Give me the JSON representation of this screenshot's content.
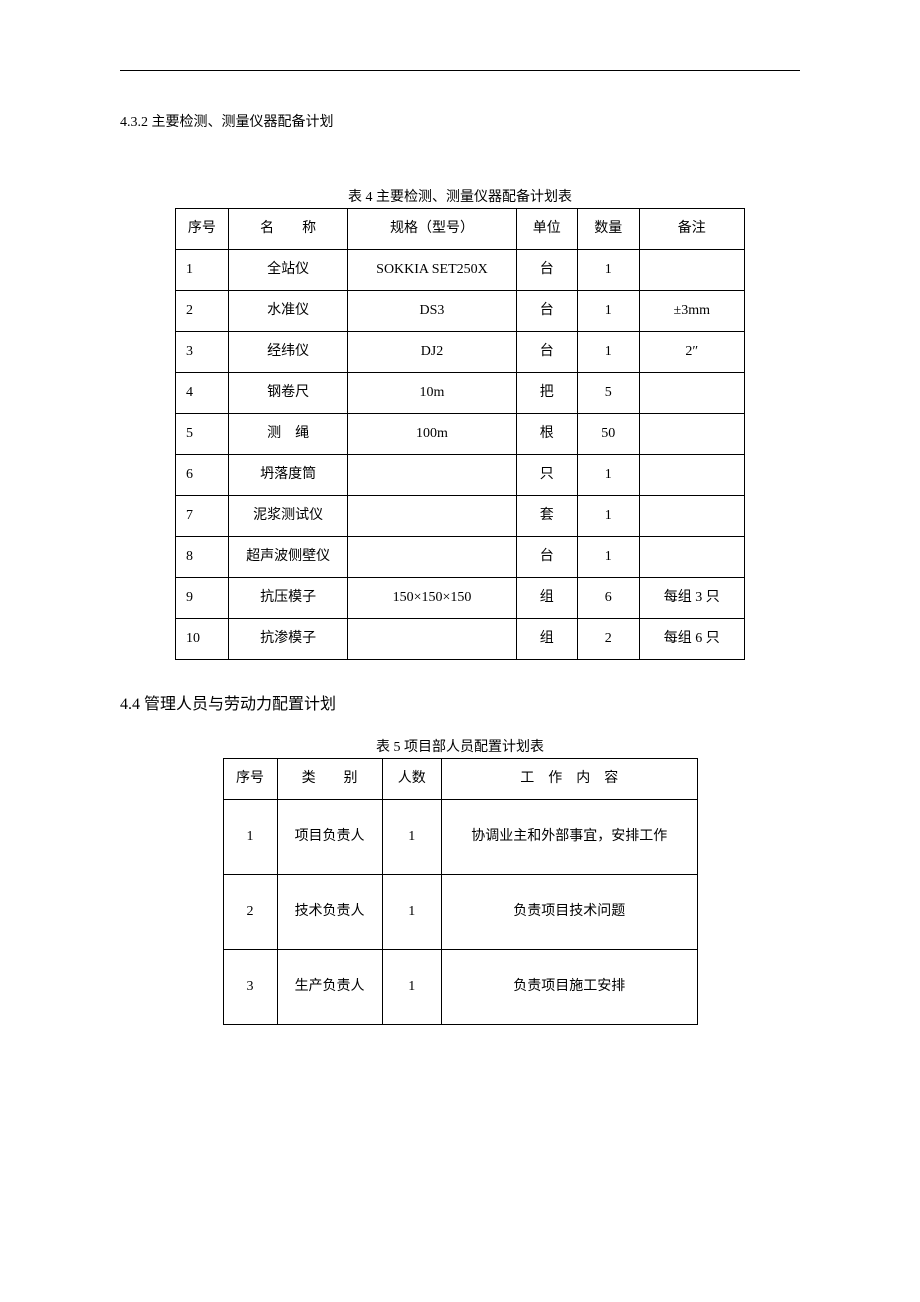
{
  "section432": "4.3.2 主要检测、测量仪器配备计划",
  "table4": {
    "caption": "表 4 主要检测、测量仪器配备计划表",
    "headers": {
      "h1": "序号",
      "h2": "名　　称",
      "h3": "规格（型号）",
      "h4": "单位",
      "h5": "数量",
      "h6": "备注"
    },
    "rows": [
      {
        "n": "1",
        "name": "全站仪",
        "spec": "SOKKIA SET250X",
        "unit": "台",
        "qty": "1",
        "note": ""
      },
      {
        "n": "2",
        "name": "水准仪",
        "spec": "DS3",
        "unit": "台",
        "qty": "1",
        "note": "±3mm"
      },
      {
        "n": "3",
        "name": "经纬仪",
        "spec": "DJ2",
        "unit": "台",
        "qty": "1",
        "note": "2″"
      },
      {
        "n": "4",
        "name": "钢卷尺",
        "spec": "10m",
        "unit": "把",
        "qty": "5",
        "note": ""
      },
      {
        "n": "5",
        "name": "测　绳",
        "spec": "100m",
        "unit": "根",
        "qty": "50",
        "note": ""
      },
      {
        "n": "6",
        "name": "坍落度筒",
        "spec": "",
        "unit": "只",
        "qty": "1",
        "note": ""
      },
      {
        "n": "7",
        "name": "泥浆测试仪",
        "spec": "",
        "unit": "套",
        "qty": "1",
        "note": ""
      },
      {
        "n": "8",
        "name": "超声波侧壁仪",
        "spec": "",
        "unit": "台",
        "qty": "1",
        "note": ""
      },
      {
        "n": "9",
        "name": "抗压模子",
        "spec": "150×150×150",
        "unit": "组",
        "qty": "6",
        "note": "每组 3 只"
      },
      {
        "n": "10",
        "name": "抗渗模子",
        "spec": "",
        "unit": "组",
        "qty": "2",
        "note": "每组 6 只"
      }
    ]
  },
  "section44": "4.4 管理人员与劳动力配置计划",
  "table5": {
    "caption": "表 5 项目部人员配置计划表",
    "headers": {
      "h1": "序号",
      "h2": "类　　别",
      "h3": "人数",
      "h4": "工 作 内 容"
    },
    "rows": [
      {
        "n": "1",
        "cat": "项目负责人",
        "num": "1",
        "work": "协调业主和外部事宜，安排工作"
      },
      {
        "n": "2",
        "cat": "技术负责人",
        "num": "1",
        "work": "负责项目技术问题"
      },
      {
        "n": "3",
        "cat": "生产负责人",
        "num": "1",
        "work": "负责项目施工安排"
      }
    ]
  },
  "style": {
    "body_font": "SimSun",
    "text_color": "#000000",
    "bg_color": "#ffffff",
    "caption_fontsize": 14,
    "cell_fontsize": 14,
    "heading_fontsize": 16,
    "border_color": "#000000",
    "border_width": 1.5,
    "table4_col_widths": [
      47,
      108,
      152,
      55,
      55,
      95
    ],
    "table5_col_widths": [
      50,
      98,
      55,
      240
    ]
  }
}
